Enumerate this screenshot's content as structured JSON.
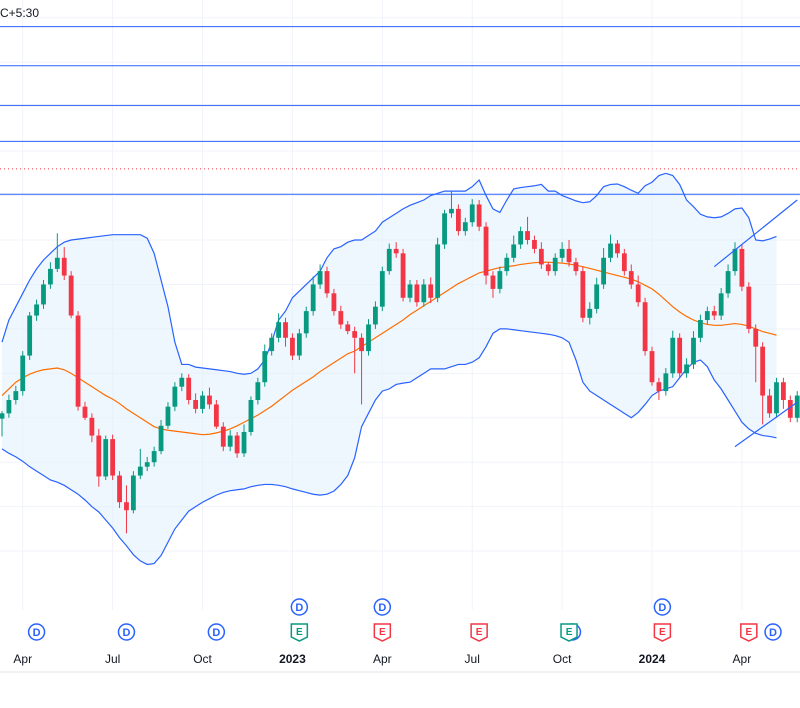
{
  "timezone_label": "C+5:30",
  "colors": {
    "up": "#089981",
    "down": "#f23645",
    "band": "#2962ff",
    "band_fill": "#e3f2fd",
    "basis": "#ff6d00",
    "hline": "#2962ff",
    "dotted": "#f23645",
    "grid": "#f0f3fa",
    "dividend": "#2962ff",
    "earnings_up": "#089981",
    "earnings_down": "#f23645"
  },
  "chart_data": {
    "type": "candlestick",
    "title": "",
    "xlabel": "",
    "ylabel": "",
    "ylim": [
      1590,
      2940
    ],
    "x_ticks": [
      {
        "label": "Apr",
        "week": 3
      },
      {
        "label": "Jul",
        "week": 16
      },
      {
        "label": "Oct",
        "week": 29
      },
      {
        "label": "2023",
        "week": 42
      },
      {
        "label": "Apr",
        "week": 55
      },
      {
        "label": "Jul",
        "week": 68
      },
      {
        "label": "Oct",
        "week": 81
      },
      {
        "label": "2024",
        "week": 94
      },
      {
        "label": "Apr",
        "week": 107
      }
    ],
    "horizontal_lines": [
      2880,
      2792,
      2703,
      2622,
      2503
    ],
    "dotted_line": 2560,
    "candles": [
      [
        1998,
        2010,
        1958,
        2015
      ],
      [
        2010,
        2040,
        2000,
        2052
      ],
      [
        2040,
        2060,
        2030,
        2072
      ],
      [
        2060,
        2140,
        2050,
        2150
      ],
      [
        2140,
        2230,
        2130,
        2238
      ],
      [
        2230,
        2255,
        2218,
        2266
      ],
      [
        2255,
        2300,
        2245,
        2310
      ],
      [
        2300,
        2335,
        2290,
        2350
      ],
      [
        2335,
        2360,
        2328,
        2415
      ],
      [
        2360,
        2320,
        2310,
        2384
      ],
      [
        2320,
        2230,
        2224,
        2330
      ],
      [
        2230,
        2025,
        2016,
        2240
      ],
      [
        2025,
        2000,
        1995,
        2036
      ],
      [
        2000,
        1960,
        1945,
        2010
      ],
      [
        1960,
        1868,
        1845,
        1975
      ],
      [
        1868,
        1952,
        1860,
        1960
      ],
      [
        1952,
        1870,
        1860,
        1962
      ],
      [
        1870,
        1810,
        1797,
        1880
      ],
      [
        1810,
        1792,
        1740,
        1848
      ],
      [
        1792,
        1870,
        1785,
        1880
      ],
      [
        1870,
        1890,
        1862,
        1930
      ],
      [
        1890,
        1900,
        1880,
        1912
      ],
      [
        1900,
        1925,
        1890,
        1935
      ],
      [
        1925,
        1982,
        1918,
        1995
      ],
      [
        1982,
        2025,
        1975,
        2035
      ],
      [
        2025,
        2070,
        2015,
        2080
      ],
      [
        2070,
        2090,
        2060,
        2100
      ],
      [
        2090,
        2040,
        2030,
        2098
      ],
      [
        2040,
        2020,
        2010,
        2055
      ],
      [
        2020,
        2050,
        2010,
        2060
      ],
      [
        2050,
        2030,
        2020,
        2068
      ],
      [
        2030,
        1980,
        1975,
        2040
      ],
      [
        1980,
        1935,
        1925,
        1990
      ],
      [
        1935,
        1960,
        1925,
        1972
      ],
      [
        1960,
        1920,
        1910,
        1968
      ],
      [
        1920,
        1968,
        1912,
        1985
      ],
      [
        1968,
        2040,
        1960,
        2048
      ],
      [
        2040,
        2080,
        2030,
        2090
      ],
      [
        2080,
        2150,
        2070,
        2165
      ],
      [
        2150,
        2180,
        2140,
        2190
      ],
      [
        2180,
        2215,
        2170,
        2235
      ],
      [
        2215,
        2180,
        2160,
        2225
      ],
      [
        2180,
        2140,
        2130,
        2190
      ],
      [
        2140,
        2190,
        2130,
        2200
      ],
      [
        2190,
        2240,
        2180,
        2250
      ],
      [
        2240,
        2300,
        2230,
        2318
      ],
      [
        2300,
        2330,
        2290,
        2345
      ],
      [
        2330,
        2280,
        2270,
        2340
      ],
      [
        2280,
        2240,
        2230,
        2290
      ],
      [
        2240,
        2210,
        2200,
        2252
      ],
      [
        2210,
        2195,
        2188,
        2218
      ],
      [
        2195,
        2180,
        2100,
        2205
      ],
      [
        2180,
        2150,
        2030,
        2190
      ],
      [
        2150,
        2210,
        2140,
        2222
      ],
      [
        2210,
        2250,
        2200,
        2262
      ],
      [
        2250,
        2330,
        2240,
        2340
      ],
      [
        2330,
        2380,
        2322,
        2392
      ],
      [
        2380,
        2370,
        2360,
        2395
      ],
      [
        2370,
        2270,
        2262,
        2380
      ],
      [
        2270,
        2300,
        2260,
        2310
      ],
      [
        2300,
        2260,
        2250,
        2310
      ],
      [
        2260,
        2300,
        2250,
        2312
      ],
      [
        2300,
        2270,
        2258,
        2316
      ],
      [
        2270,
        2390,
        2260,
        2405
      ],
      [
        2390,
        2460,
        2380,
        2468
      ],
      [
        2460,
        2470,
        2450,
        2510
      ],
      [
        2470,
        2420,
        2410,
        2480
      ],
      [
        2420,
        2440,
        2410,
        2450
      ],
      [
        2440,
        2480,
        2430,
        2492
      ],
      [
        2480,
        2430,
        2420,
        2490
      ],
      [
        2430,
        2320,
        2300,
        2440
      ],
      [
        2320,
        2290,
        2270,
        2330
      ],
      [
        2290,
        2330,
        2280,
        2340
      ],
      [
        2330,
        2360,
        2320,
        2370
      ],
      [
        2360,
        2390,
        2350,
        2410
      ],
      [
        2390,
        2420,
        2380,
        2430
      ],
      [
        2420,
        2400,
        2390,
        2452
      ],
      [
        2400,
        2380,
        2370,
        2410
      ],
      [
        2380,
        2345,
        2335,
        2395
      ],
      [
        2345,
        2330,
        2320,
        2350
      ],
      [
        2330,
        2360,
        2320,
        2370
      ],
      [
        2360,
        2380,
        2350,
        2395
      ],
      [
        2380,
        2350,
        2340,
        2400
      ],
      [
        2350,
        2330,
        2320,
        2360
      ],
      [
        2330,
        2225,
        2215,
        2340
      ],
      [
        2225,
        2245,
        2210,
        2260
      ],
      [
        2245,
        2300,
        2235,
        2315
      ],
      [
        2300,
        2360,
        2290,
        2382
      ],
      [
        2360,
        2392,
        2350,
        2412
      ],
      [
        2392,
        2370,
        2360,
        2400
      ],
      [
        2370,
        2330,
        2320,
        2380
      ],
      [
        2330,
        2300,
        2290,
        2345
      ],
      [
        2300,
        2260,
        2250,
        2320
      ],
      [
        2260,
        2150,
        2140,
        2270
      ],
      [
        2150,
        2080,
        2072,
        2160
      ],
      [
        2080,
        2060,
        2040,
        2090
      ],
      [
        2060,
        2100,
        2050,
        2112
      ],
      [
        2100,
        2180,
        2090,
        2196
      ],
      [
        2180,
        2100,
        2090,
        2190
      ],
      [
        2100,
        2120,
        2090,
        2134
      ],
      [
        2120,
        2180,
        2110,
        2195
      ],
      [
        2180,
        2220,
        2170,
        2232
      ],
      [
        2220,
        2240,
        2210,
        2250
      ],
      [
        2240,
        2230,
        2220,
        2252
      ],
      [
        2230,
        2280,
        2220,
        2292
      ],
      [
        2280,
        2330,
        2270,
        2345
      ],
      [
        2330,
        2380,
        2320,
        2395
      ],
      [
        2380,
        2295,
        2285,
        2390
      ],
      [
        2295,
        2200,
        2190,
        2305
      ],
      [
        2200,
        2160,
        2080,
        2210
      ],
      [
        2160,
        2050,
        1985,
        2170
      ],
      [
        2050,
        2010,
        2000,
        2065
      ],
      [
        2010,
        2080,
        2000,
        2090
      ],
      [
        2080,
        2040,
        2020,
        2090
      ],
      [
        2040,
        2000,
        1990,
        2050
      ],
      [
        2000,
        2050,
        1990,
        2060
      ]
    ],
    "basis": [
      2050,
      2065,
      2080,
      2090,
      2098,
      2104,
      2108,
      2110,
      2112,
      2108,
      2100,
      2090,
      2080,
      2070,
      2060,
      2050,
      2042,
      2032,
      2020,
      2010,
      2000,
      1990,
      1980,
      1975,
      1972,
      1970,
      1968,
      1966,
      1964,
      1962,
      1963,
      1966,
      1970,
      1975,
      1982,
      1990,
      1998,
      2006,
      2016,
      2026,
      2038,
      2050,
      2062,
      2072,
      2082,
      2092,
      2104,
      2114,
      2124,
      2134,
      2144,
      2150,
      2160,
      2170,
      2180,
      2190,
      2200,
      2210,
      2220,
      2232,
      2242,
      2252,
      2262,
      2272,
      2282,
      2292,
      2302,
      2310,
      2318,
      2326,
      2330,
      2334,
      2338,
      2340,
      2342,
      2345,
      2347,
      2349,
      2350,
      2350,
      2349,
      2348,
      2346,
      2343,
      2340,
      2336,
      2332,
      2328,
      2324,
      2320,
      2316,
      2312,
      2306,
      2298,
      2290,
      2278,
      2264,
      2250,
      2238,
      2228,
      2220,
      2214,
      2210,
      2208,
      2208,
      2210,
      2212,
      2210,
      2206,
      2200,
      2194,
      2190,
      2186
    ],
    "upper_band": [
      2170,
      2220,
      2250,
      2280,
      2310,
      2335,
      2355,
      2370,
      2385,
      2395,
      2400,
      2402,
      2404,
      2406,
      2408,
      2410,
      2412,
      2412,
      2412,
      2412,
      2412,
      2404,
      2370,
      2310,
      2250,
      2170,
      2120,
      2120,
      2114,
      2112,
      2110,
      2108,
      2106,
      2104,
      2100,
      2098,
      2100,
      2110,
      2130,
      2170,
      2220,
      2240,
      2270,
      2285,
      2300,
      2315,
      2330,
      2360,
      2380,
      2385,
      2395,
      2400,
      2400,
      2410,
      2420,
      2440,
      2450,
      2460,
      2470,
      2478,
      2484,
      2490,
      2500,
      2505,
      2510,
      2510,
      2510,
      2510,
      2520,
      2535,
      2500,
      2470,
      2462,
      2490,
      2515,
      2518,
      2520,
      2522,
      2525,
      2510,
      2510,
      2500,
      2494,
      2488,
      2484,
      2486,
      2500,
      2520,
      2525,
      2526,
      2520,
      2512,
      2505,
      2522,
      2530,
      2545,
      2550,
      2545,
      2525,
      2490,
      2475,
      2458,
      2452,
      2450,
      2452,
      2460,
      2470,
      2472,
      2450,
      2400,
      2398,
      2402,
      2408
    ],
    "lower_band": [
      1930,
      1920,
      1912,
      1902,
      1890,
      1880,
      1870,
      1860,
      1855,
      1848,
      1838,
      1828,
      1815,
      1800,
      1788,
      1770,
      1752,
      1730,
      1712,
      1692,
      1678,
      1670,
      1672,
      1690,
      1720,
      1750,
      1770,
      1790,
      1800,
      1810,
      1818,
      1826,
      1832,
      1836,
      1838,
      1840,
      1845,
      1848,
      1850,
      1850,
      1848,
      1845,
      1840,
      1836,
      1832,
      1828,
      1826,
      1828,
      1835,
      1850,
      1870,
      1910,
      1980,
      2010,
      2040,
      2060,
      2065,
      2075,
      2078,
      2080,
      2090,
      2100,
      2110,
      2110,
      2110,
      2115,
      2120,
      2120,
      2125,
      2135,
      2160,
      2190,
      2200,
      2200,
      2198,
      2196,
      2194,
      2192,
      2190,
      2188,
      2185,
      2180,
      2170,
      2130,
      2080,
      2060,
      2050,
      2040,
      2030,
      2020,
      2010,
      2000,
      2012,
      2030,
      2050,
      2060,
      2065,
      2070,
      2090,
      2110,
      2125,
      2130,
      2115,
      2085,
      2065,
      2040,
      2015,
      1990,
      1975,
      1965,
      1960,
      1958,
      1955
    ],
    "trend_lines": [
      [
        [
          103,
          2340
        ],
        [
          115,
          2490
        ]
      ],
      [
        [
          106,
          1935
        ],
        [
          115,
          2035
        ]
      ]
    ],
    "events": {
      "dividends": [
        {
          "label": "D",
          "week": 5,
          "row": 2
        },
        {
          "label": "D",
          "week": 18,
          "row": 2
        },
        {
          "label": "D",
          "week": 31,
          "row": 2
        },
        {
          "label": "D",
          "week": 43,
          "row": 1
        },
        {
          "label": "D",
          "week": 55,
          "row": 1
        },
        {
          "label": "D",
          "week": 82.5,
          "row": 2
        },
        {
          "label": "D",
          "week": 95.5,
          "row": 1
        },
        {
          "label": "D",
          "week": 111.5,
          "row": 2
        }
      ],
      "earnings": [
        {
          "label": "E",
          "week": 43,
          "row": 2,
          "direction": "up"
        },
        {
          "label": "E",
          "week": 55,
          "row": 2,
          "direction": "down"
        },
        {
          "label": "E",
          "week": 69,
          "row": 2,
          "direction": "down"
        },
        {
          "label": "E",
          "week": 82,
          "row": 2,
          "direction": "up"
        },
        {
          "label": "E",
          "week": 95.5,
          "row": 2,
          "direction": "down"
        },
        {
          "label": "E",
          "week": 108,
          "row": 2,
          "direction": "down"
        }
      ]
    }
  }
}
